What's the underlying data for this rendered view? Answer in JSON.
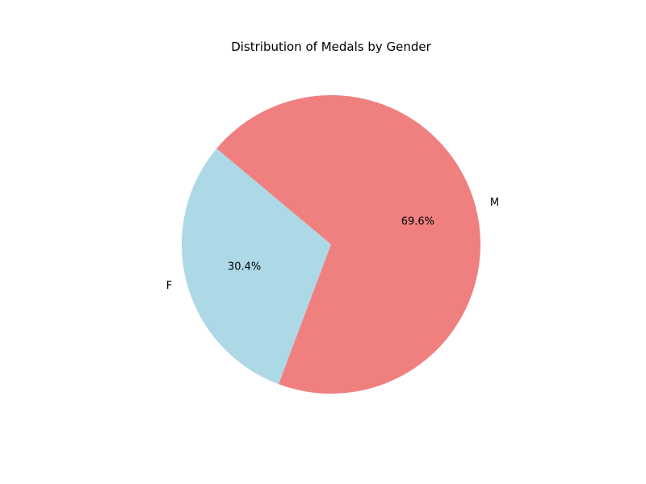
{
  "chart_data": {
    "type": "pie",
    "title": "Distribution of Medals by Gender",
    "categories": [
      "F",
      "M"
    ],
    "values": [
      30.4,
      69.6
    ],
    "percent_labels": [
      "30.4%",
      "69.6%"
    ],
    "colors": [
      "#add8e6",
      "#f08080"
    ],
    "start_angle_deg": 140,
    "direction": "counterclockwise"
  }
}
